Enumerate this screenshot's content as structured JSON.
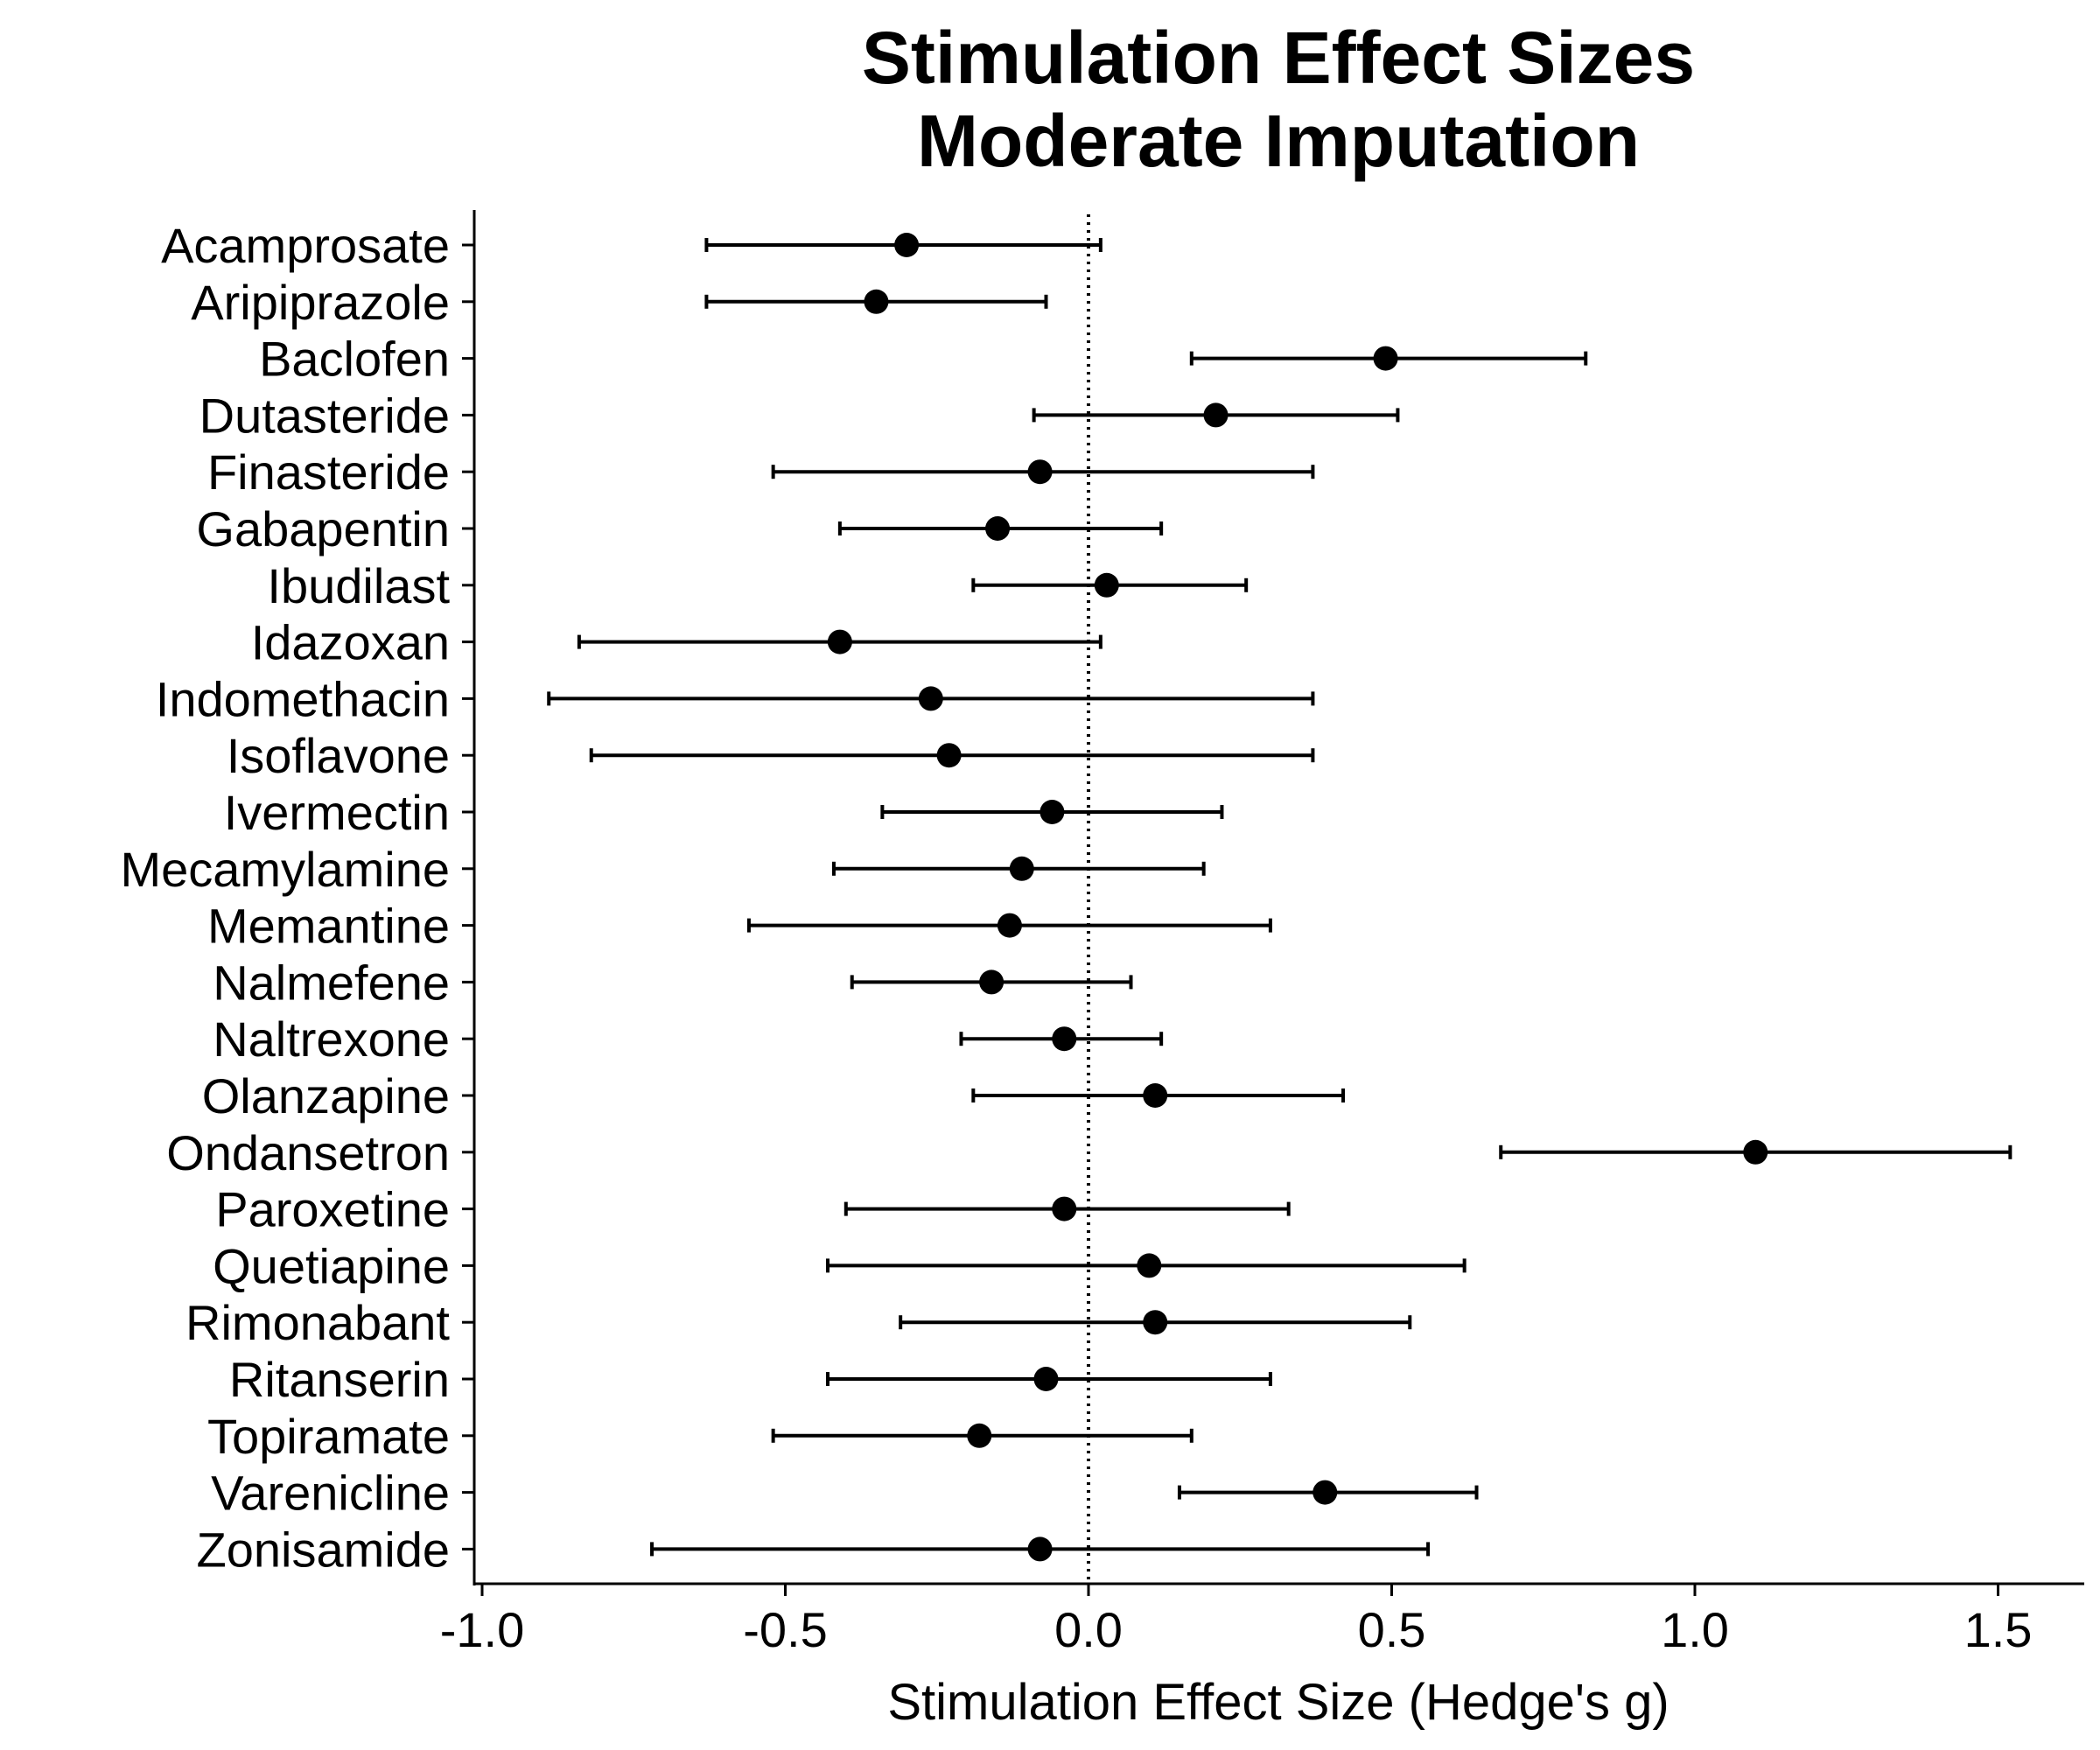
{
  "chart_data": {
    "type": "forest",
    "title": [
      "Stimulation Effect Sizes",
      "Moderate Imputation"
    ],
    "xlabel": "Stimulation Effect Size (Hedge's g)",
    "ylabel": "",
    "xlim": [
      -1.0,
      1.6
    ],
    "xticks": [
      -1.0,
      -0.5,
      0.0,
      0.5,
      1.0,
      1.5
    ],
    "xtick_labels": [
      "-1.0",
      "-0.5",
      "0.0",
      "0.5",
      "1.0",
      "1.5"
    ],
    "reference_line": 0.0,
    "grid": false,
    "colors": {
      "marker": "#000000",
      "error_bar": "#000000",
      "axis": "#000000"
    },
    "rows": [
      {
        "label": "Acamprosate",
        "estimate": -0.3,
        "ci_low": -0.63,
        "ci_high": 0.02
      },
      {
        "label": "Aripiprazole",
        "estimate": -0.35,
        "ci_low": -0.63,
        "ci_high": -0.07
      },
      {
        "label": "Baclofen",
        "estimate": 0.49,
        "ci_low": 0.17,
        "ci_high": 0.82
      },
      {
        "label": "Dutasteride",
        "estimate": 0.21,
        "ci_low": -0.09,
        "ci_high": 0.51
      },
      {
        "label": "Finasteride",
        "estimate": -0.08,
        "ci_low": -0.52,
        "ci_high": 0.37
      },
      {
        "label": "Gabapentin",
        "estimate": -0.15,
        "ci_low": -0.41,
        "ci_high": 0.12
      },
      {
        "label": "Ibudilast",
        "estimate": 0.03,
        "ci_low": -0.19,
        "ci_high": 0.26
      },
      {
        "label": "Idazoxan",
        "estimate": -0.41,
        "ci_low": -0.84,
        "ci_high": 0.02
      },
      {
        "label": "Indomethacin",
        "estimate": -0.26,
        "ci_low": -0.89,
        "ci_high": 0.37
      },
      {
        "label": "Isoflavone",
        "estimate": -0.23,
        "ci_low": -0.82,
        "ci_high": 0.37
      },
      {
        "label": "Ivermectin",
        "estimate": -0.06,
        "ci_low": -0.34,
        "ci_high": 0.22
      },
      {
        "label": "Mecamylamine",
        "estimate": -0.11,
        "ci_low": -0.42,
        "ci_high": 0.19
      },
      {
        "label": "Memantine",
        "estimate": -0.13,
        "ci_low": -0.56,
        "ci_high": 0.3
      },
      {
        "label": "Nalmefene",
        "estimate": -0.16,
        "ci_low": -0.39,
        "ci_high": 0.07
      },
      {
        "label": "Naltrexone",
        "estimate": -0.04,
        "ci_low": -0.21,
        "ci_high": 0.12
      },
      {
        "label": "Olanzapine",
        "estimate": 0.11,
        "ci_low": -0.19,
        "ci_high": 0.42
      },
      {
        "label": "Ondansetron",
        "estimate": 1.1,
        "ci_low": 0.68,
        "ci_high": 1.52
      },
      {
        "label": "Paroxetine",
        "estimate": -0.04,
        "ci_low": -0.4,
        "ci_high": 0.33
      },
      {
        "label": "Quetiapine",
        "estimate": 0.1,
        "ci_low": -0.43,
        "ci_high": 0.62
      },
      {
        "label": "Rimonabant",
        "estimate": 0.11,
        "ci_low": -0.31,
        "ci_high": 0.53
      },
      {
        "label": "Ritanserin",
        "estimate": -0.07,
        "ci_low": -0.43,
        "ci_high": 0.3
      },
      {
        "label": "Topiramate",
        "estimate": -0.18,
        "ci_low": -0.52,
        "ci_high": 0.17
      },
      {
        "label": "Varenicline",
        "estimate": 0.39,
        "ci_low": 0.15,
        "ci_high": 0.64
      },
      {
        "label": "Zonisamide",
        "estimate": -0.08,
        "ci_low": -0.72,
        "ci_high": 0.56
      }
    ]
  }
}
